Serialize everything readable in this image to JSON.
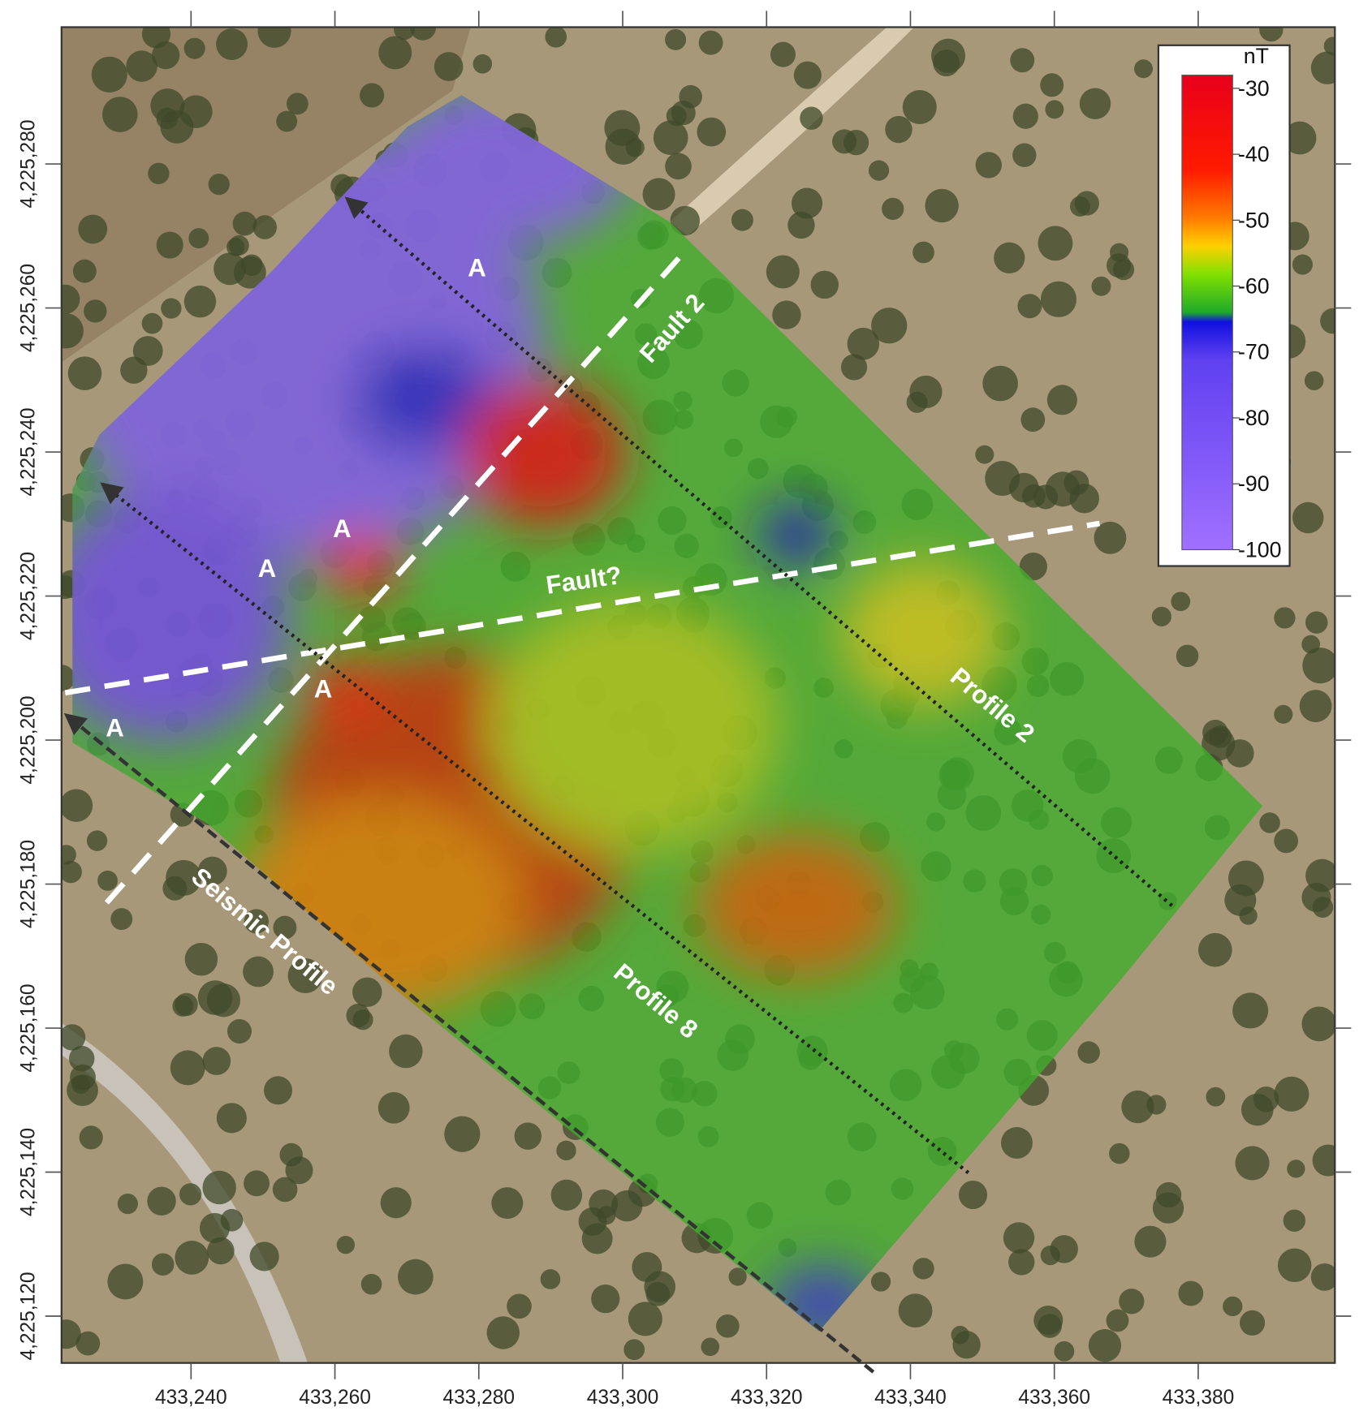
{
  "map": {
    "xlim": [
      433222,
      433399
    ],
    "ylim": [
      4225113.5,
      4225299
    ],
    "xticks": [
      {
        "value": 433240,
        "label": "433,240"
      },
      {
        "value": 433260,
        "label": "433,260"
      },
      {
        "value": 433280,
        "label": "433,280"
      },
      {
        "value": 433300,
        "label": "433,300"
      },
      {
        "value": 433320,
        "label": "433,320"
      },
      {
        "value": 433340,
        "label": "433,340"
      },
      {
        "value": 433360,
        "label": "433,360"
      },
      {
        "value": 433380,
        "label": "433,380"
      }
    ],
    "yticks": [
      {
        "value": 4225120,
        "label": "4,225,120"
      },
      {
        "value": 4225140,
        "label": "4,225,140"
      },
      {
        "value": 4225160,
        "label": "4,225,160"
      },
      {
        "value": 4225180,
        "label": "4,225,180"
      },
      {
        "value": 4225200,
        "label": "4,225,200"
      },
      {
        "value": 4225220,
        "label": "4,225,220"
      },
      {
        "value": 4225240,
        "label": "4,225,240"
      },
      {
        "value": 4225260,
        "label": "4,225,260"
      },
      {
        "value": 4225280,
        "label": "4,225,280"
      }
    ],
    "colorbar": {
      "title": "nT",
      "clim": [
        -100,
        -28
      ],
      "ticks": [
        -30,
        -40,
        -50,
        -60,
        -70,
        -80,
        -90,
        -100
      ]
    },
    "labels": [
      "A",
      "A",
      "A",
      "A",
      "A",
      "Fault 2",
      "Fault?",
      "Profile 2",
      "Profile 8",
      "Seismic Profile"
    ]
  }
}
